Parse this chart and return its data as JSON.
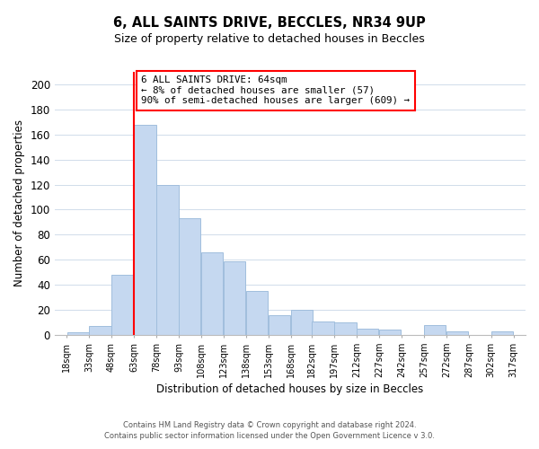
{
  "title": "6, ALL SAINTS DRIVE, BECCLES, NR34 9UP",
  "subtitle": "Size of property relative to detached houses in Beccles",
  "xlabel": "Distribution of detached houses by size in Beccles",
  "ylabel": "Number of detached properties",
  "bar_color": "#c5d8f0",
  "bar_edge_color": "#a0bedd",
  "red_line_x": 63,
  "bins_left_edges": [
    18,
    33,
    48,
    63,
    78,
    93,
    108,
    123,
    138,
    153,
    168,
    182,
    197,
    212,
    227,
    242,
    257,
    272,
    287,
    302
  ],
  "bin_width": 15,
  "counts": [
    2,
    7,
    48,
    168,
    120,
    93,
    66,
    59,
    35,
    16,
    20,
    11,
    10,
    5,
    4,
    0,
    8,
    3,
    0,
    3
  ],
  "xlim_left": 10,
  "xlim_right": 325,
  "ylim_top": 210,
  "annotation_text": "6 ALL SAINTS DRIVE: 64sqm\n← 8% of detached houses are smaller (57)\n90% of semi-detached houses are larger (609) →",
  "annotation_box_color": "white",
  "annotation_box_edge_color": "red",
  "footer1": "Contains HM Land Registry data © Crown copyright and database right 2024.",
  "footer2": "Contains public sector information licensed under the Open Government Licence v 3.0.",
  "x_tick_labels": [
    "18sqm",
    "33sqm",
    "48sqm",
    "63sqm",
    "78sqm",
    "93sqm",
    "108sqm",
    "123sqm",
    "138sqm",
    "153sqm",
    "168sqm",
    "182sqm",
    "197sqm",
    "212sqm",
    "227sqm",
    "242sqm",
    "257sqm",
    "272sqm",
    "287sqm",
    "302sqm",
    "317sqm"
  ],
  "x_tick_positions": [
    18,
    33,
    48,
    63,
    78,
    93,
    108,
    123,
    138,
    153,
    168,
    182,
    197,
    212,
    227,
    242,
    257,
    272,
    287,
    302,
    317
  ],
  "yticks": [
    0,
    20,
    40,
    60,
    80,
    100,
    120,
    140,
    160,
    180,
    200
  ]
}
